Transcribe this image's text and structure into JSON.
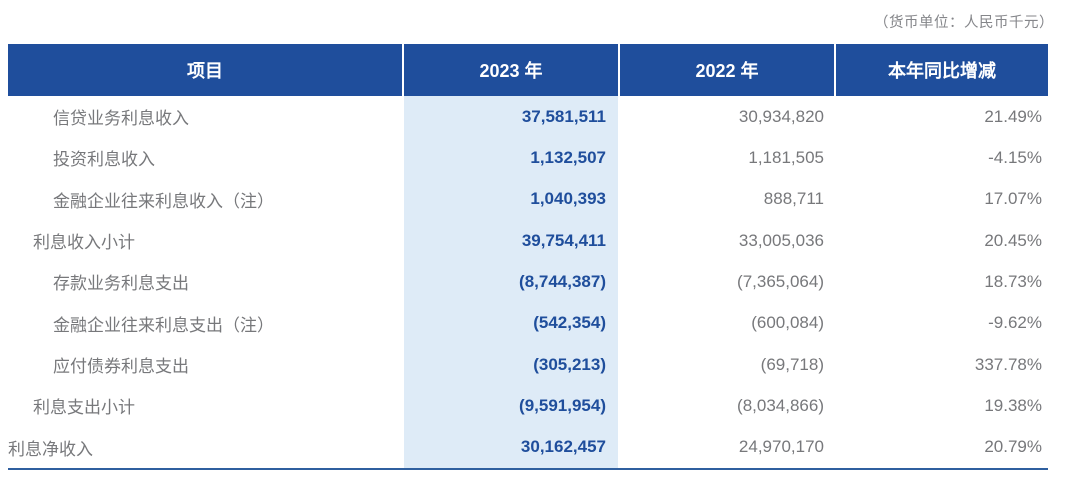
{
  "note": "（货币单位：人民币千元）",
  "columns": [
    "项目",
    "2023 年",
    "2022 年",
    "本年同比增减"
  ],
  "colors": {
    "header_bg": "#1f4e9c",
    "highlight_bg": "#deebf7",
    "value_blue": "#1f4e9c",
    "text_gray": "#77787b",
    "bottom_rule": "#2f5f9f"
  },
  "rows": [
    {
      "label": "信贷业务利息收入",
      "y2023": "37,581,511",
      "y2022": "30,934,820",
      "change": "21.49%"
    },
    {
      "label": "投资利息收入",
      "y2023": "1,132,507",
      "y2022": "1,181,505",
      "change": "-4.15%"
    },
    {
      "label": "金融企业往来利息收入（注）",
      "y2023": "1,040,393",
      "y2022": "888,711",
      "change": "17.07%"
    },
    {
      "label": "利息收入小计",
      "y2023": "39,754,411",
      "y2022": "33,005,036",
      "change": "20.45%"
    },
    {
      "label": "存款业务利息支出",
      "y2023": "(8,744,387)",
      "y2022": "(7,365,064)",
      "change": "18.73%"
    },
    {
      "label": "金融企业往来利息支出（注）",
      "y2023": "(542,354)",
      "y2022": "(600,084)",
      "change": "-9.62%"
    },
    {
      "label": "应付债券利息支出",
      "y2023": "(305,213)",
      "y2022": "(69,718)",
      "change": "337.78%"
    },
    {
      "label": "利息支出小计",
      "y2023": "(9,591,954)",
      "y2022": "(8,034,866)",
      "change": "19.38%"
    },
    {
      "label": "利息净收入",
      "y2023": "30,162,457",
      "y2022": "24,970,170",
      "change": "20.79%"
    }
  ]
}
